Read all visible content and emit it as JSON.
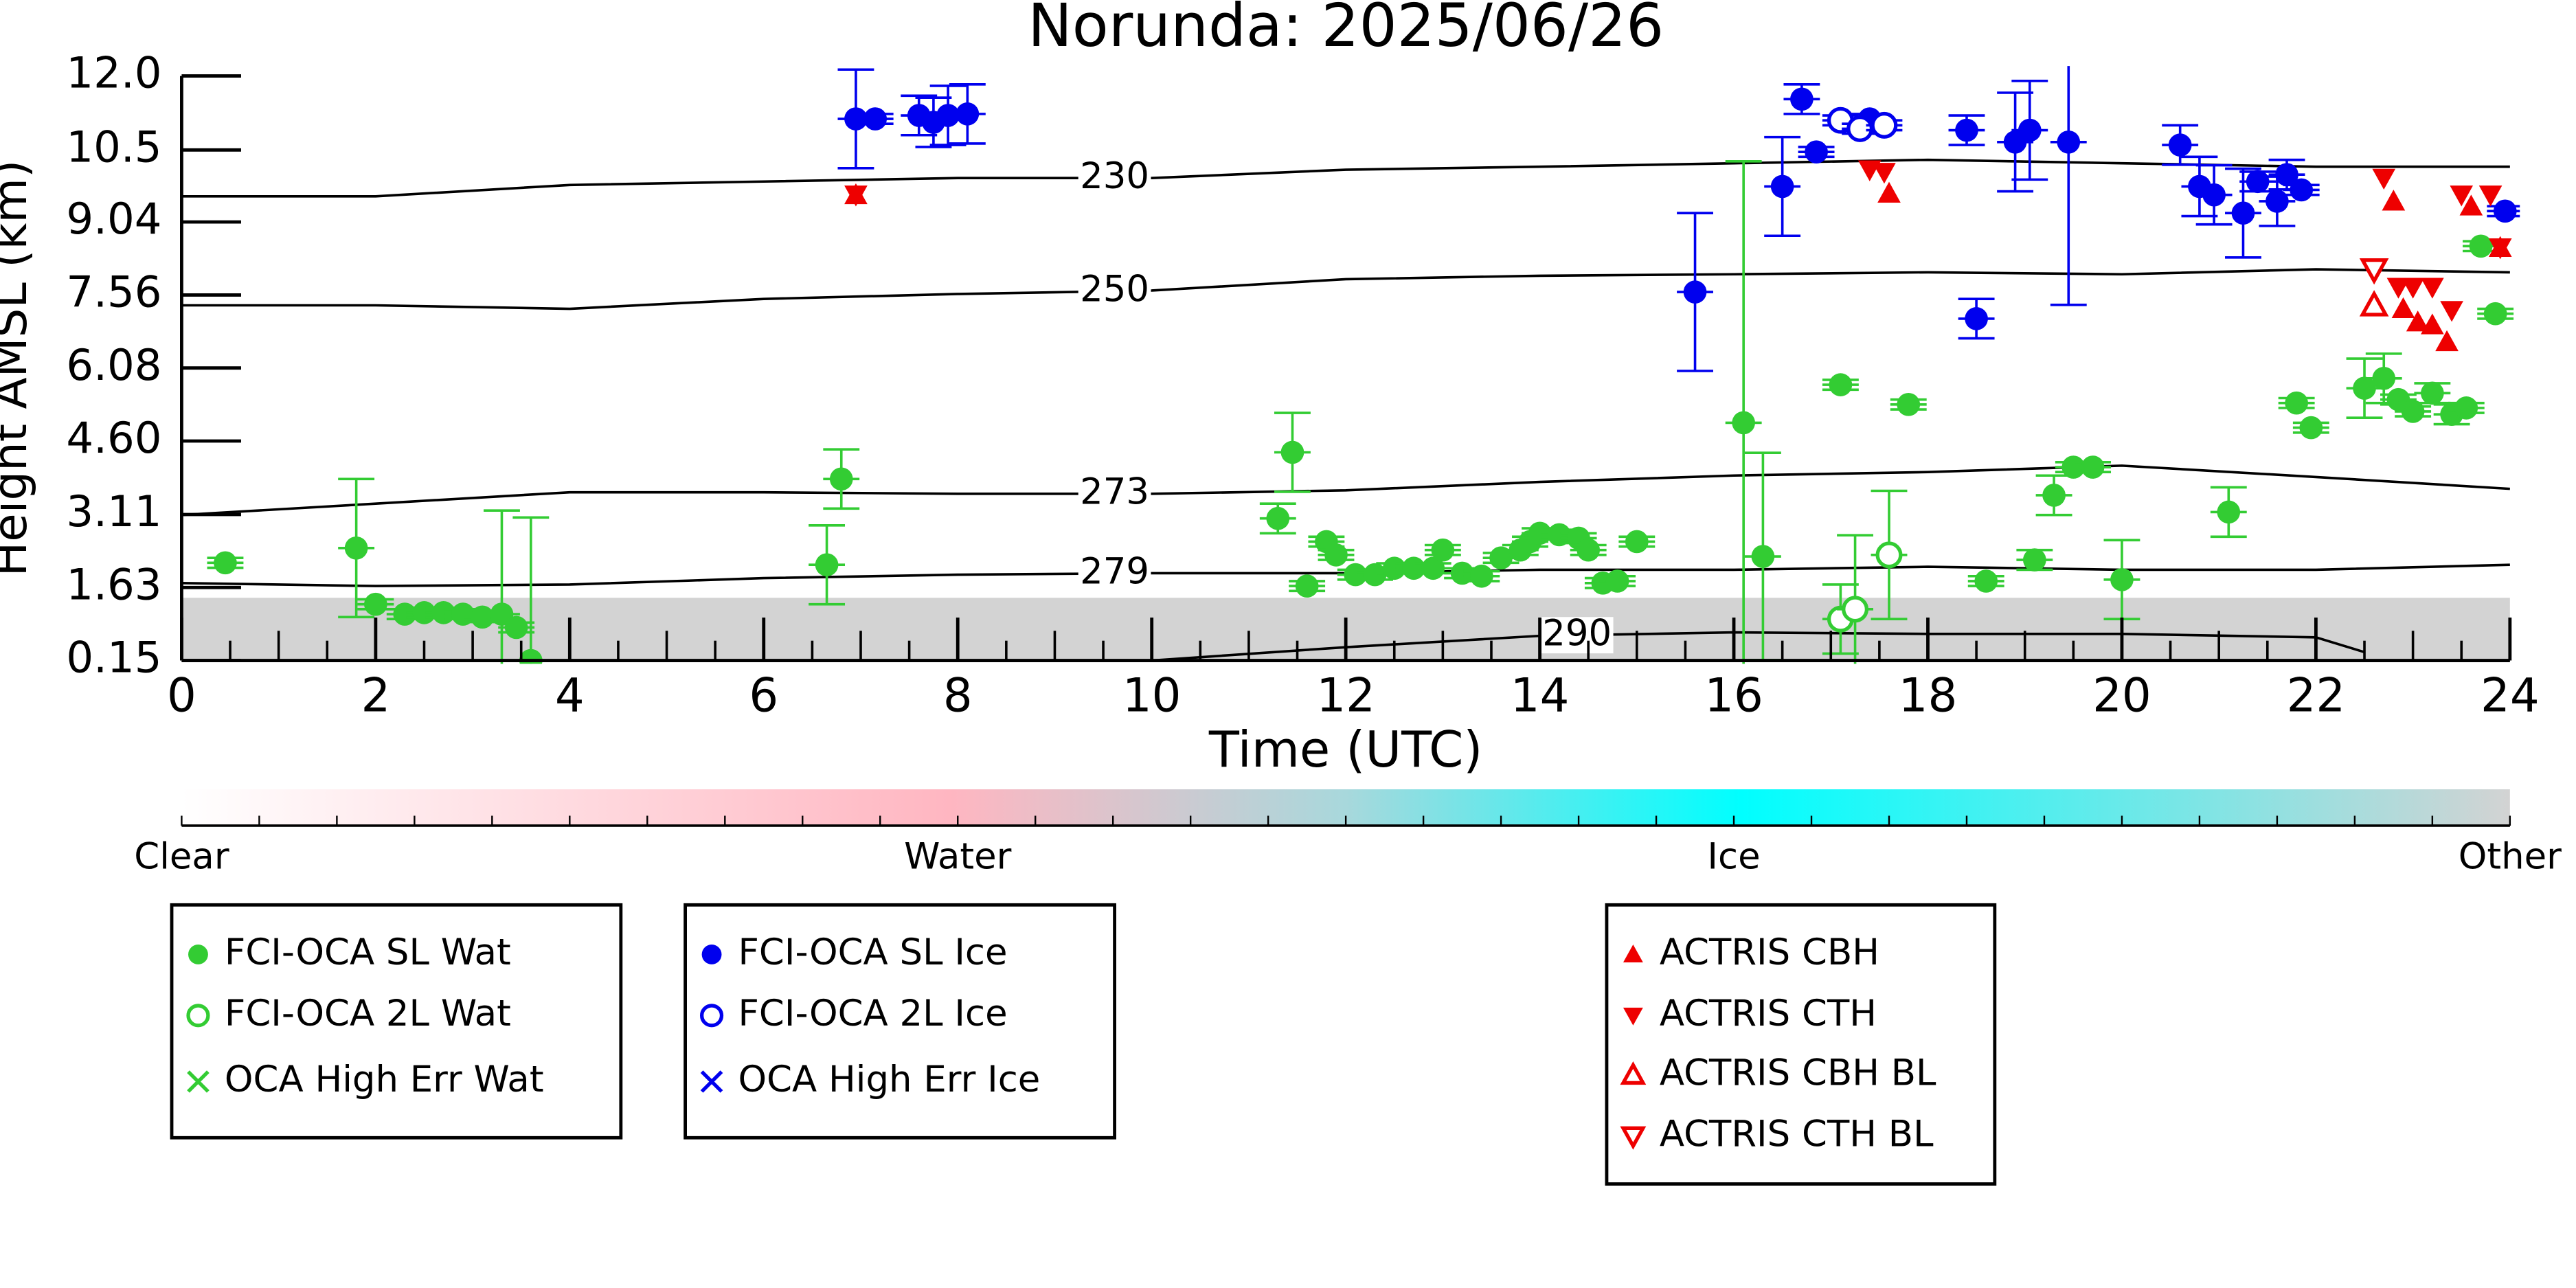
{
  "chart_data": {
    "type": "scatter",
    "title": "Norunda: 2025/06/26",
    "x_label": "Time (UTC)",
    "y_label": "Height AMSL (km)",
    "xlim": [
      0,
      24
    ],
    "xticks": [
      0,
      2,
      4,
      6,
      8,
      10,
      12,
      14,
      16,
      18,
      20,
      22,
      24
    ],
    "ylim": [
      0.15,
      12.0
    ],
    "yticks": [
      0.15,
      1.63,
      3.11,
      {
        "value": 4.6,
        "label": "4.60"
      },
      6.08,
      7.56,
      9.04,
      10.5,
      {
        "value": 12.0,
        "label": "12.0"
      }
    ],
    "contours": [
      {
        "label": "230",
        "x": [
          0,
          2,
          4,
          6,
          8,
          10,
          12,
          14,
          16,
          18,
          20,
          22,
          24
        ],
        "values": [
          9.56,
          9.56,
          9.79,
          9.86,
          9.93,
          9.93,
          10.1,
          10.16,
          10.23,
          10.3,
          10.23,
          10.16,
          10.16
        ]
      },
      {
        "label": "250",
        "x": [
          0,
          2,
          4,
          6,
          8,
          10,
          12,
          14,
          16,
          18,
          20,
          22,
          24
        ],
        "values": [
          7.35,
          7.35,
          7.28,
          7.48,
          7.58,
          7.65,
          7.88,
          7.95,
          7.98,
          8.02,
          7.98,
          8.08,
          8.02
        ]
      },
      {
        "label": "273",
        "x": [
          0,
          2,
          4,
          6,
          8,
          10,
          12,
          14,
          16,
          18,
          20,
          22,
          24
        ],
        "values": [
          3.1,
          3.33,
          3.56,
          3.56,
          3.53,
          3.53,
          3.6,
          3.77,
          3.9,
          3.97,
          4.1,
          3.87,
          3.63
        ]
      },
      {
        "label": "279",
        "x": [
          0,
          2,
          4,
          6,
          8,
          10,
          12,
          14,
          16,
          18,
          20,
          22,
          24
        ],
        "values": [
          1.72,
          1.66,
          1.69,
          1.82,
          1.89,
          1.92,
          1.92,
          1.99,
          1.99,
          2.05,
          1.99,
          1.99,
          2.09
        ]
      },
      {
        "label": "290",
        "x": [
          8,
          10,
          12,
          14,
          16,
          18,
          20,
          22,
          22.5
        ],
        "values": [
          0.15,
          0.15,
          0.42,
          0.65,
          0.72,
          0.69,
          0.69,
          0.62,
          0.32
        ]
      }
    ],
    "colorbar": {
      "labels": [
        "Clear",
        "Water",
        "Ice",
        "Other"
      ]
    },
    "series": [
      {
        "name": "FCI-OCA SL Wat",
        "color": "#33cc33",
        "marker": "o",
        "x": [
          0.45,
          1.8,
          2.0,
          2.3,
          2.5,
          2.7,
          2.9,
          3.1,
          3.3,
          3.45,
          3.6,
          6.65,
          6.8,
          11.3,
          11.45,
          11.6,
          11.8,
          11.9,
          12.1,
          12.3,
          12.5,
          12.7,
          12.9,
          13.0,
          13.2,
          13.4,
          13.6,
          13.8,
          13.9,
          14.0,
          14.2,
          14.4,
          14.5,
          14.65,
          14.8,
          15.0,
          16.1,
          16.3,
          17.1,
          17.8,
          18.6,
          19.1,
          19.3,
          19.5,
          19.7,
          20.0,
          21.1,
          21.8,
          21.95,
          22.5,
          22.7,
          22.85,
          23.0,
          23.2,
          23.4,
          23.55,
          23.7,
          23.85
        ],
        "values": [
          2.13,
          2.43,
          1.29,
          1.09,
          1.12,
          1.12,
          1.09,
          1.03,
          1.09,
          0.82,
          0.15,
          2.09,
          3.83,
          3.03,
          4.37,
          1.66,
          2.56,
          2.29,
          1.89,
          1.89,
          2.02,
          2.02,
          2.02,
          2.39,
          1.92,
          1.86,
          2.23,
          2.39,
          2.56,
          2.73,
          2.7,
          2.63,
          2.39,
          1.72,
          1.76,
          2.56,
          4.97,
          2.26,
          5.74,
          5.34,
          1.76,
          2.19,
          3.5,
          4.07,
          4.07,
          1.79,
          3.16,
          5.37,
          4.87,
          5.67,
          5.87,
          5.44,
          5.2,
          5.57,
          5.14,
          5.27,
          8.55,
          7.18
        ],
        "errors": [
          0.1,
          1.4,
          0.1,
          0.1,
          0.1,
          0.1,
          0.1,
          0.1,
          2.1,
          0.1,
          2.9,
          0.8,
          0.6,
          0.3,
          0.8,
          0.1,
          0.1,
          0.1,
          0.1,
          0.1,
          0.1,
          0.1,
          0.1,
          0.1,
          0.1,
          0.1,
          0.1,
          0.1,
          0.1,
          0.1,
          0.1,
          0.1,
          0.1,
          0.1,
          0.1,
          0.1,
          5.3,
          2.1,
          0.1,
          0.1,
          0.1,
          0.2,
          0.4,
          0.1,
          0.1,
          0.8,
          0.5,
          0.1,
          0.1,
          0.6,
          0.5,
          0.1,
          0.1,
          0.2,
          0.2,
          0.1,
          0.1,
          0.1
        ]
      },
      {
        "name": "FCI-OCA 2L Wat",
        "color": "#33cc33",
        "marker": "o_open",
        "x": [
          17.1,
          17.25,
          17.6
        ],
        "values": [
          0.99,
          1.19,
          2.29
        ],
        "errors": [
          0.7,
          1.5,
          1.3
        ]
      },
      {
        "name": "OCA High Err Wat",
        "color": "#33cc33",
        "marker": "x",
        "x": [],
        "values": []
      },
      {
        "name": "FCI-OCA SL Ice",
        "color": "#0000ee",
        "marker": "o",
        "x": [
          6.95,
          7.15,
          7.6,
          7.75,
          7.9,
          8.1,
          15.6,
          16.5,
          16.7,
          16.85,
          17.4,
          18.4,
          18.5,
          18.9,
          19.05,
          19.45,
          20.6,
          20.8,
          20.95,
          21.25,
          21.4,
          21.6,
          21.7,
          21.85,
          23.95
        ],
        "values": [
          11.13,
          11.13,
          11.2,
          11.06,
          11.2,
          11.23,
          7.62,
          9.76,
          11.53,
          10.46,
          11.13,
          10.9,
          7.08,
          10.66,
          10.9,
          10.66,
          10.6,
          9.76,
          9.59,
          9.22,
          9.86,
          9.46,
          10.0,
          9.69,
          9.26
        ],
        "errors": [
          1.0,
          0.1,
          0.4,
          0.5,
          0.6,
          0.6,
          1.6,
          1.0,
          0.3,
          0.1,
          0.1,
          0.3,
          0.4,
          1.0,
          1.0,
          3.3,
          0.4,
          0.6,
          0.6,
          0.9,
          0.2,
          0.5,
          0.3,
          0.1,
          0.1
        ]
      },
      {
        "name": "FCI-OCA 2L Ice",
        "color": "#0000ee",
        "marker": "o_open",
        "x": [
          17.1,
          17.3,
          17.55
        ],
        "values": [
          11.1,
          10.93,
          11.0
        ],
        "errors": [
          0.1,
          0.1,
          0.1
        ]
      },
      {
        "name": "OCA High Err Ice",
        "color": "#0000ee",
        "marker": "x",
        "x": [],
        "values": []
      },
      {
        "name": "ACTRIS CBH",
        "color": "#ee0000",
        "marker": "^",
        "x": [
          6.95,
          17.6,
          22.8,
          22.9,
          23.05,
          23.2,
          23.35,
          23.6,
          23.9
        ],
        "values": [
          9.59,
          9.62,
          9.46,
          7.28,
          7.01,
          6.95,
          6.61,
          9.36,
          8.52
        ]
      },
      {
        "name": "ACTRIS CTH",
        "color": "#ee0000",
        "marker": "v",
        "x": [
          6.95,
          17.4,
          17.55,
          22.7,
          22.85,
          23.0,
          23.2,
          23.4,
          23.5,
          23.8,
          23.9
        ],
        "values": [
          9.59,
          10.1,
          10.05,
          9.93,
          7.72,
          7.72,
          7.72,
          7.25,
          9.59,
          9.59,
          8.52
        ]
      },
      {
        "name": "ACTRIS CBH BL",
        "color": "#ee0000",
        "marker": "^_open",
        "x": [
          22.6
        ],
        "values": [
          7.35
        ]
      },
      {
        "name": "ACTRIS CTH BL",
        "color": "#ee0000",
        "marker": "v_open",
        "x": [
          22.6
        ],
        "values": [
          8.08
        ]
      }
    ]
  }
}
